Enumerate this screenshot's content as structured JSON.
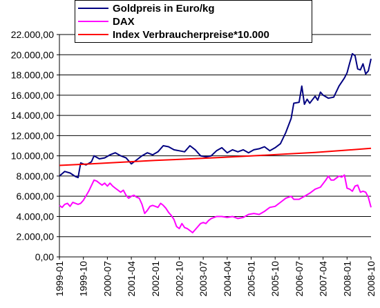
{
  "chart_data": {
    "type": "line",
    "title": "",
    "xlabel": "",
    "ylabel": "",
    "ylim": [
      0,
      22000
    ],
    "yticks": [
      0,
      2000,
      4000,
      6000,
      8000,
      10000,
      12000,
      14000,
      16000,
      18000,
      20000,
      22000
    ],
    "ytick_labels": [
      "0,00",
      "2.000,00",
      "4.000,00",
      "6.000,00",
      "8.000,00",
      "10.000,00",
      "12.000,00",
      "14.000,00",
      "16.000,00",
      "18.000,00",
      "20.000,00",
      "22.000,00"
    ],
    "x_start": "1999-01",
    "x_end": "2008-10",
    "xtick_labels": [
      "1999-01",
      "1999-10",
      "2000-07",
      "2001-04",
      "2002-01",
      "2002-10",
      "2003-07",
      "2004-04",
      "2005-01",
      "2005-10",
      "2006-07",
      "2007-04",
      "2008-01",
      "2008-10"
    ],
    "grid": true,
    "legend_position": "top",
    "series": [
      {
        "name": "Goldpreis in Euro/kg",
        "color": "#000080",
        "points": [
          [
            "1999-01",
            8000
          ],
          [
            "1999-03",
            8450
          ],
          [
            "1999-05",
            8300
          ],
          [
            "1999-07",
            7950
          ],
          [
            "1999-08",
            7850
          ],
          [
            "1999-09",
            9300
          ],
          [
            "1999-11",
            9100
          ],
          [
            "2000-01",
            9400
          ],
          [
            "2000-02",
            10000
          ],
          [
            "2000-04",
            9700
          ],
          [
            "2000-06",
            9800
          ],
          [
            "2000-08",
            10100
          ],
          [
            "2000-10",
            10300
          ],
          [
            "2000-12",
            10000
          ],
          [
            "2001-02",
            9800
          ],
          [
            "2001-04",
            9200
          ],
          [
            "2001-06",
            9600
          ],
          [
            "2001-08",
            10000
          ],
          [
            "2001-10",
            10300
          ],
          [
            "2001-12",
            10100
          ],
          [
            "2002-02",
            10400
          ],
          [
            "2002-04",
            11000
          ],
          [
            "2002-06",
            10900
          ],
          [
            "2002-08",
            10600
          ],
          [
            "2002-10",
            10500
          ],
          [
            "2002-12",
            10400
          ],
          [
            "2003-02",
            11000
          ],
          [
            "2003-04",
            10600
          ],
          [
            "2003-06",
            10000
          ],
          [
            "2003-08",
            9900
          ],
          [
            "2003-10",
            10000
          ],
          [
            "2003-12",
            10500
          ],
          [
            "2004-02",
            10800
          ],
          [
            "2004-04",
            10300
          ],
          [
            "2004-06",
            10600
          ],
          [
            "2004-08",
            10400
          ],
          [
            "2004-10",
            10600
          ],
          [
            "2004-12",
            10300
          ],
          [
            "2005-02",
            10600
          ],
          [
            "2005-04",
            10700
          ],
          [
            "2005-06",
            10900
          ],
          [
            "2005-08",
            10500
          ],
          [
            "2005-10",
            10800
          ],
          [
            "2005-12",
            11200
          ],
          [
            "2006-02",
            12300
          ],
          [
            "2006-04",
            13700
          ],
          [
            "2006-05",
            15200
          ],
          [
            "2006-07",
            15300
          ],
          [
            "2006-08",
            16900
          ],
          [
            "2006-09",
            15100
          ],
          [
            "2006-10",
            15600
          ],
          [
            "2006-11",
            15200
          ],
          [
            "2007-01",
            15900
          ],
          [
            "2007-02",
            15500
          ],
          [
            "2007-03",
            16300
          ],
          [
            "2007-04",
            16000
          ],
          [
            "2007-06",
            15700
          ],
          [
            "2007-08",
            15800
          ],
          [
            "2007-10",
            16900
          ],
          [
            "2007-12",
            17700
          ],
          [
            "2008-01",
            18200
          ],
          [
            "2008-02",
            19200
          ],
          [
            "2008-03",
            20100
          ],
          [
            "2008-04",
            19900
          ],
          [
            "2008-05",
            18600
          ],
          [
            "2008-06",
            18500
          ],
          [
            "2008-07",
            19100
          ],
          [
            "2008-08",
            18100
          ],
          [
            "2008-09",
            18400
          ],
          [
            "2008-10",
            19600
          ]
        ]
      },
      {
        "name": "DAX",
        "color": "#ff00ff",
        "points": [
          [
            "1999-01",
            5100
          ],
          [
            "1999-02",
            4900
          ],
          [
            "1999-03",
            5200
          ],
          [
            "1999-04",
            5300
          ],
          [
            "1999-05",
            5000
          ],
          [
            "1999-06",
            5400
          ],
          [
            "1999-07",
            5300
          ],
          [
            "1999-08",
            5200
          ],
          [
            "1999-09",
            5300
          ],
          [
            "1999-10",
            5600
          ],
          [
            "1999-12",
            6500
          ],
          [
            "2000-02",
            7600
          ],
          [
            "2000-03",
            7500
          ],
          [
            "2000-04",
            7300
          ],
          [
            "2000-05",
            7100
          ],
          [
            "2000-06",
            7300
          ],
          [
            "2000-07",
            7000
          ],
          [
            "2000-08",
            7300
          ],
          [
            "2000-09",
            7000
          ],
          [
            "2000-10",
            6800
          ],
          [
            "2000-12",
            6400
          ],
          [
            "2001-01",
            6600
          ],
          [
            "2001-02",
            6100
          ],
          [
            "2001-03",
            5800
          ],
          [
            "2001-04",
            6000
          ],
          [
            "2001-05",
            6100
          ],
          [
            "2001-06",
            5900
          ],
          [
            "2001-07",
            5800
          ],
          [
            "2001-08",
            5200
          ],
          [
            "2001-09",
            4300
          ],
          [
            "2001-10",
            4600
          ],
          [
            "2001-11",
            5000
          ],
          [
            "2001-12",
            5100
          ],
          [
            "2002-01",
            5000
          ],
          [
            "2002-02",
            4900
          ],
          [
            "2002-03",
            5300
          ],
          [
            "2002-04",
            5100
          ],
          [
            "2002-05",
            4800
          ],
          [
            "2002-06",
            4400
          ],
          [
            "2002-07",
            4100
          ],
          [
            "2002-08",
            3700
          ],
          [
            "2002-09",
            3000
          ],
          [
            "2002-10",
            2800
          ],
          [
            "2002-11",
            3300
          ],
          [
            "2002-12",
            2900
          ],
          [
            "2003-01",
            2800
          ],
          [
            "2003-02",
            2600
          ],
          [
            "2003-03",
            2400
          ],
          [
            "2003-04",
            2700
          ],
          [
            "2003-05",
            3000
          ],
          [
            "2003-06",
            3300
          ],
          [
            "2003-07",
            3400
          ],
          [
            "2003-08",
            3300
          ],
          [
            "2003-09",
            3600
          ],
          [
            "2003-10",
            3800
          ],
          [
            "2003-12",
            4000
          ],
          [
            "2004-02",
            4000
          ],
          [
            "2004-04",
            3900
          ],
          [
            "2004-06",
            4000
          ],
          [
            "2004-08",
            3800
          ],
          [
            "2004-10",
            3900
          ],
          [
            "2004-12",
            4200
          ],
          [
            "2005-02",
            4300
          ],
          [
            "2005-04",
            4200
          ],
          [
            "2005-06",
            4500
          ],
          [
            "2005-08",
            4900
          ],
          [
            "2005-10",
            5000
          ],
          [
            "2005-12",
            5400
          ],
          [
            "2006-02",
            5800
          ],
          [
            "2006-04",
            6000
          ],
          [
            "2006-05",
            5700
          ],
          [
            "2006-07",
            5700
          ],
          [
            "2006-09",
            6000
          ],
          [
            "2006-11",
            6300
          ],
          [
            "2007-01",
            6700
          ],
          [
            "2007-03",
            6900
          ],
          [
            "2007-05",
            7600
          ],
          [
            "2007-06",
            8000
          ],
          [
            "2007-07",
            7600
          ],
          [
            "2007-08",
            7600
          ],
          [
            "2007-09",
            7800
          ],
          [
            "2007-10",
            8000
          ],
          [
            "2007-11",
            7900
          ],
          [
            "2007-12",
            8100
          ],
          [
            "2008-01",
            6800
          ],
          [
            "2008-02",
            6700
          ],
          [
            "2008-03",
            6500
          ],
          [
            "2008-04",
            7000
          ],
          [
            "2008-05",
            7100
          ],
          [
            "2008-06",
            6400
          ],
          [
            "2008-07",
            6500
          ],
          [
            "2008-08",
            6400
          ],
          [
            "2008-09",
            5900
          ],
          [
            "2008-10",
            4900
          ]
        ]
      },
      {
        "name": "Index Verbraucherpreise*10.000",
        "color": "#ff0000",
        "points": [
          [
            "1999-01",
            9050
          ],
          [
            "2000-01",
            9200
          ],
          [
            "2001-01",
            9380
          ],
          [
            "2002-01",
            9550
          ],
          [
            "2003-01",
            9680
          ],
          [
            "2004-01",
            9830
          ],
          [
            "2005-01",
            9990
          ],
          [
            "2006-01",
            10160
          ],
          [
            "2007-01",
            10340
          ],
          [
            "2008-01",
            10560
          ],
          [
            "2008-10",
            10750
          ]
        ]
      }
    ]
  }
}
